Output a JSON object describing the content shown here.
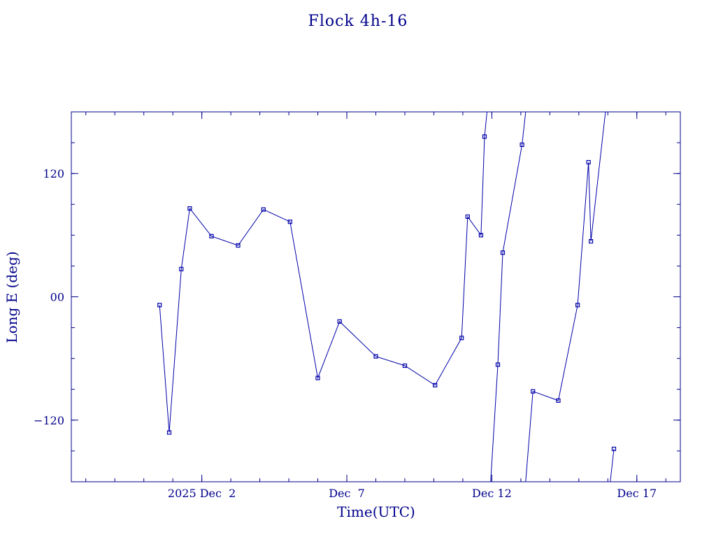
{
  "chart_data": {
    "type": "line",
    "title": "Flock 4h-16",
    "xlabel": "Time(UTC)",
    "ylabel": "Long E (deg)",
    "color": "#0000aa",
    "text_color": "#00008b",
    "xlim": [
      "2025-11-27T12:00",
      "2025-12-18T12:00"
    ],
    "ylim": [
      -180,
      180
    ],
    "grid": false,
    "legend": "none",
    "x_ticks": [
      {
        "x": "2025-12-02T00:00",
        "label": "2025 Dec  2"
      },
      {
        "x": "2025-12-07T00:00",
        "label": "Dec  7"
      },
      {
        "x": "2025-12-12T00:00",
        "label": "Dec 12"
      },
      {
        "x": "2025-12-17T00:00",
        "label": "Dec 17"
      }
    ],
    "x_minor_ticks": [
      "2025-11-28T00:00",
      "2025-11-29T00:00",
      "2025-11-30T00:00",
      "2025-12-01T00:00",
      "2025-12-02T00:00",
      "2025-12-03T00:00",
      "2025-12-04T00:00",
      "2025-12-05T00:00",
      "2025-12-06T00:00",
      "2025-12-07T00:00",
      "2025-12-08T00:00",
      "2025-12-09T00:00",
      "2025-12-10T00:00",
      "2025-12-11T00:00",
      "2025-12-12T00:00",
      "2025-12-13T00:00",
      "2025-12-14T00:00",
      "2025-12-15T00:00",
      "2025-12-16T00:00",
      "2025-12-17T00:00",
      "2025-12-18T00:00"
    ],
    "y_ticks": [
      {
        "y": 120,
        "label": "120"
      },
      {
        "y": 0,
        "label": "00"
      },
      {
        "y": -120,
        "label": "−120"
      }
    ],
    "y_minor_ticks": [
      -150,
      -120,
      -90,
      -60,
      -30,
      0,
      30,
      60,
      90,
      120,
      150
    ],
    "series": [
      {
        "segments": [
          [
            {
              "x": "2025-11-30T13:00",
              "y": -8
            },
            {
              "x": "2025-11-30T21:00",
              "y": -132
            },
            {
              "x": "2025-12-01T07:00",
              "y": 27
            },
            {
              "x": "2025-12-01T14:00",
              "y": 86
            },
            {
              "x": "2025-12-02T08:00",
              "y": 59
            },
            {
              "x": "2025-12-03T06:00",
              "y": 50
            },
            {
              "x": "2025-12-04T03:00",
              "y": 85
            },
            {
              "x": "2025-12-05T01:00",
              "y": 73
            },
            {
              "x": "2025-12-06T00:00",
              "y": -79
            },
            {
              "x": "2025-12-06T18:00",
              "y": -24
            },
            {
              "x": "2025-12-08T00:00",
              "y": -58
            },
            {
              "x": "2025-12-09T00:00",
              "y": -67
            },
            {
              "x": "2025-12-10T01:00",
              "y": -86
            },
            {
              "x": "2025-12-10T23:00",
              "y": -40
            },
            {
              "x": "2025-12-11T04:00",
              "y": 78
            },
            {
              "x": "2025-12-11T15:00",
              "y": 60
            },
            {
              "x": "2025-12-11T18:00",
              "y": 156
            },
            {
              "x": "2025-12-11T20:00",
              "y": 180
            }
          ],
          [
            {
              "x": "2025-12-11T23:00",
              "y": -180
            },
            {
              "x": "2025-12-12T05:00",
              "y": -66
            },
            {
              "x": "2025-12-12T09:00",
              "y": 43
            },
            {
              "x": "2025-12-13T01:00",
              "y": 148
            },
            {
              "x": "2025-12-13T04:00",
              "y": 180
            }
          ],
          [
            {
              "x": "2025-12-13T04:00",
              "y": -180
            },
            {
              "x": "2025-12-13T10:00",
              "y": -92
            },
            {
              "x": "2025-12-14T07:00",
              "y": -101
            },
            {
              "x": "2025-12-14T23:00",
              "y": -8
            },
            {
              "x": "2025-12-15T08:00",
              "y": 131
            },
            {
              "x": "2025-12-15T10:00",
              "y": 54
            },
            {
              "x": "2025-12-15T22:00",
              "y": 180
            }
          ],
          [
            {
              "x": "2025-12-16T02:00",
              "y": -180
            },
            {
              "x": "2025-12-16T05:00",
              "y": -148
            }
          ]
        ]
      }
    ]
  }
}
